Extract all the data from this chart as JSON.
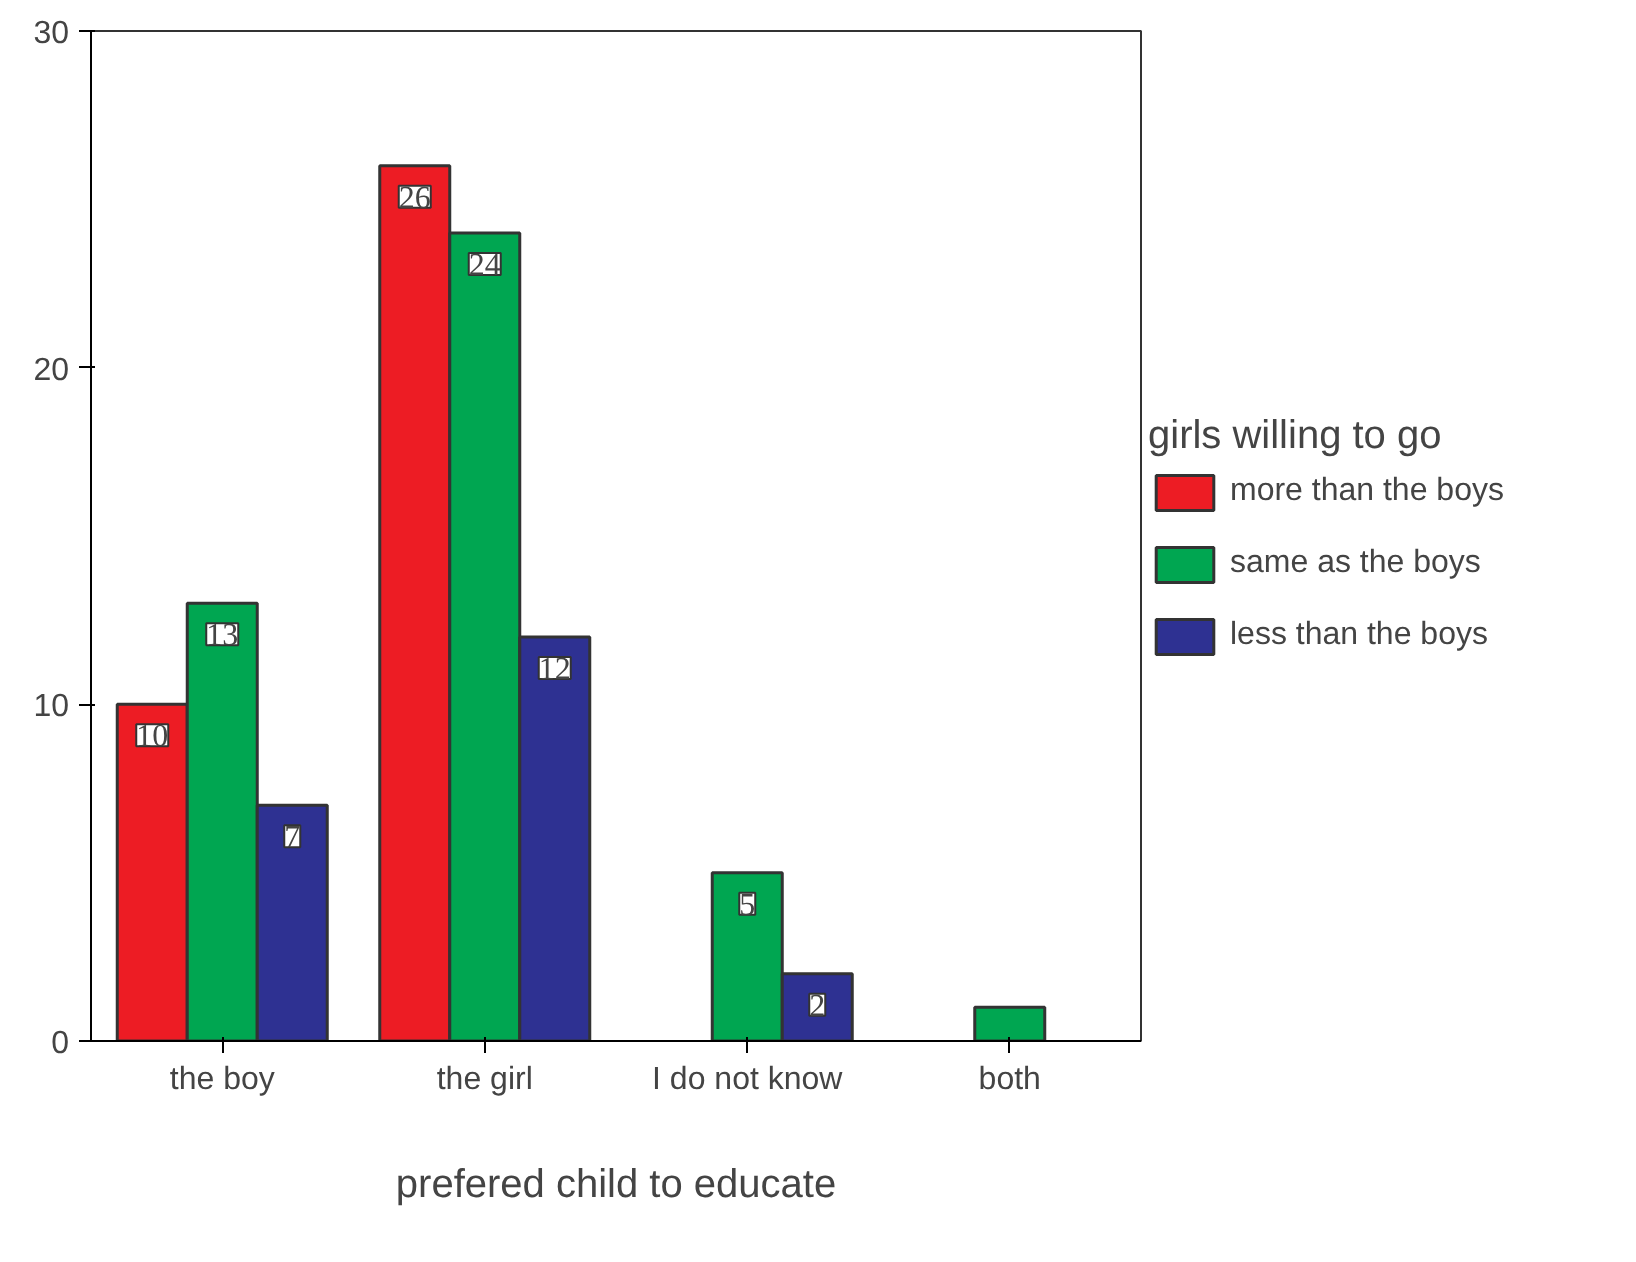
{
  "chart_data": {
    "type": "bar",
    "xlabel": "prefered child to educate",
    "legend_title": "girls willing to go",
    "categories": [
      "the boy",
      "the girl",
      "I do not know",
      "both"
    ],
    "series": [
      {
        "name": "more than the boys",
        "color": "#ed1c24",
        "values": [
          10,
          26,
          null,
          null
        ],
        "value_labels": [
          "10",
          "26",
          null,
          null
        ]
      },
      {
        "name": "same as the boys",
        "color": "#00a651",
        "values": [
          13,
          24,
          5,
          1
        ],
        "value_labels": [
          "13",
          "24",
          "5",
          null
        ]
      },
      {
        "name": "less than the boys",
        "color": "#2e3192",
        "values": [
          7,
          12,
          2,
          null
        ],
        "value_labels": [
          "7",
          "12",
          "2",
          null
        ]
      }
    ],
    "ylim": [
      0,
      30
    ],
    "yticks": [
      0,
      10,
      20,
      30
    ],
    "grid": false,
    "legend": "right"
  }
}
